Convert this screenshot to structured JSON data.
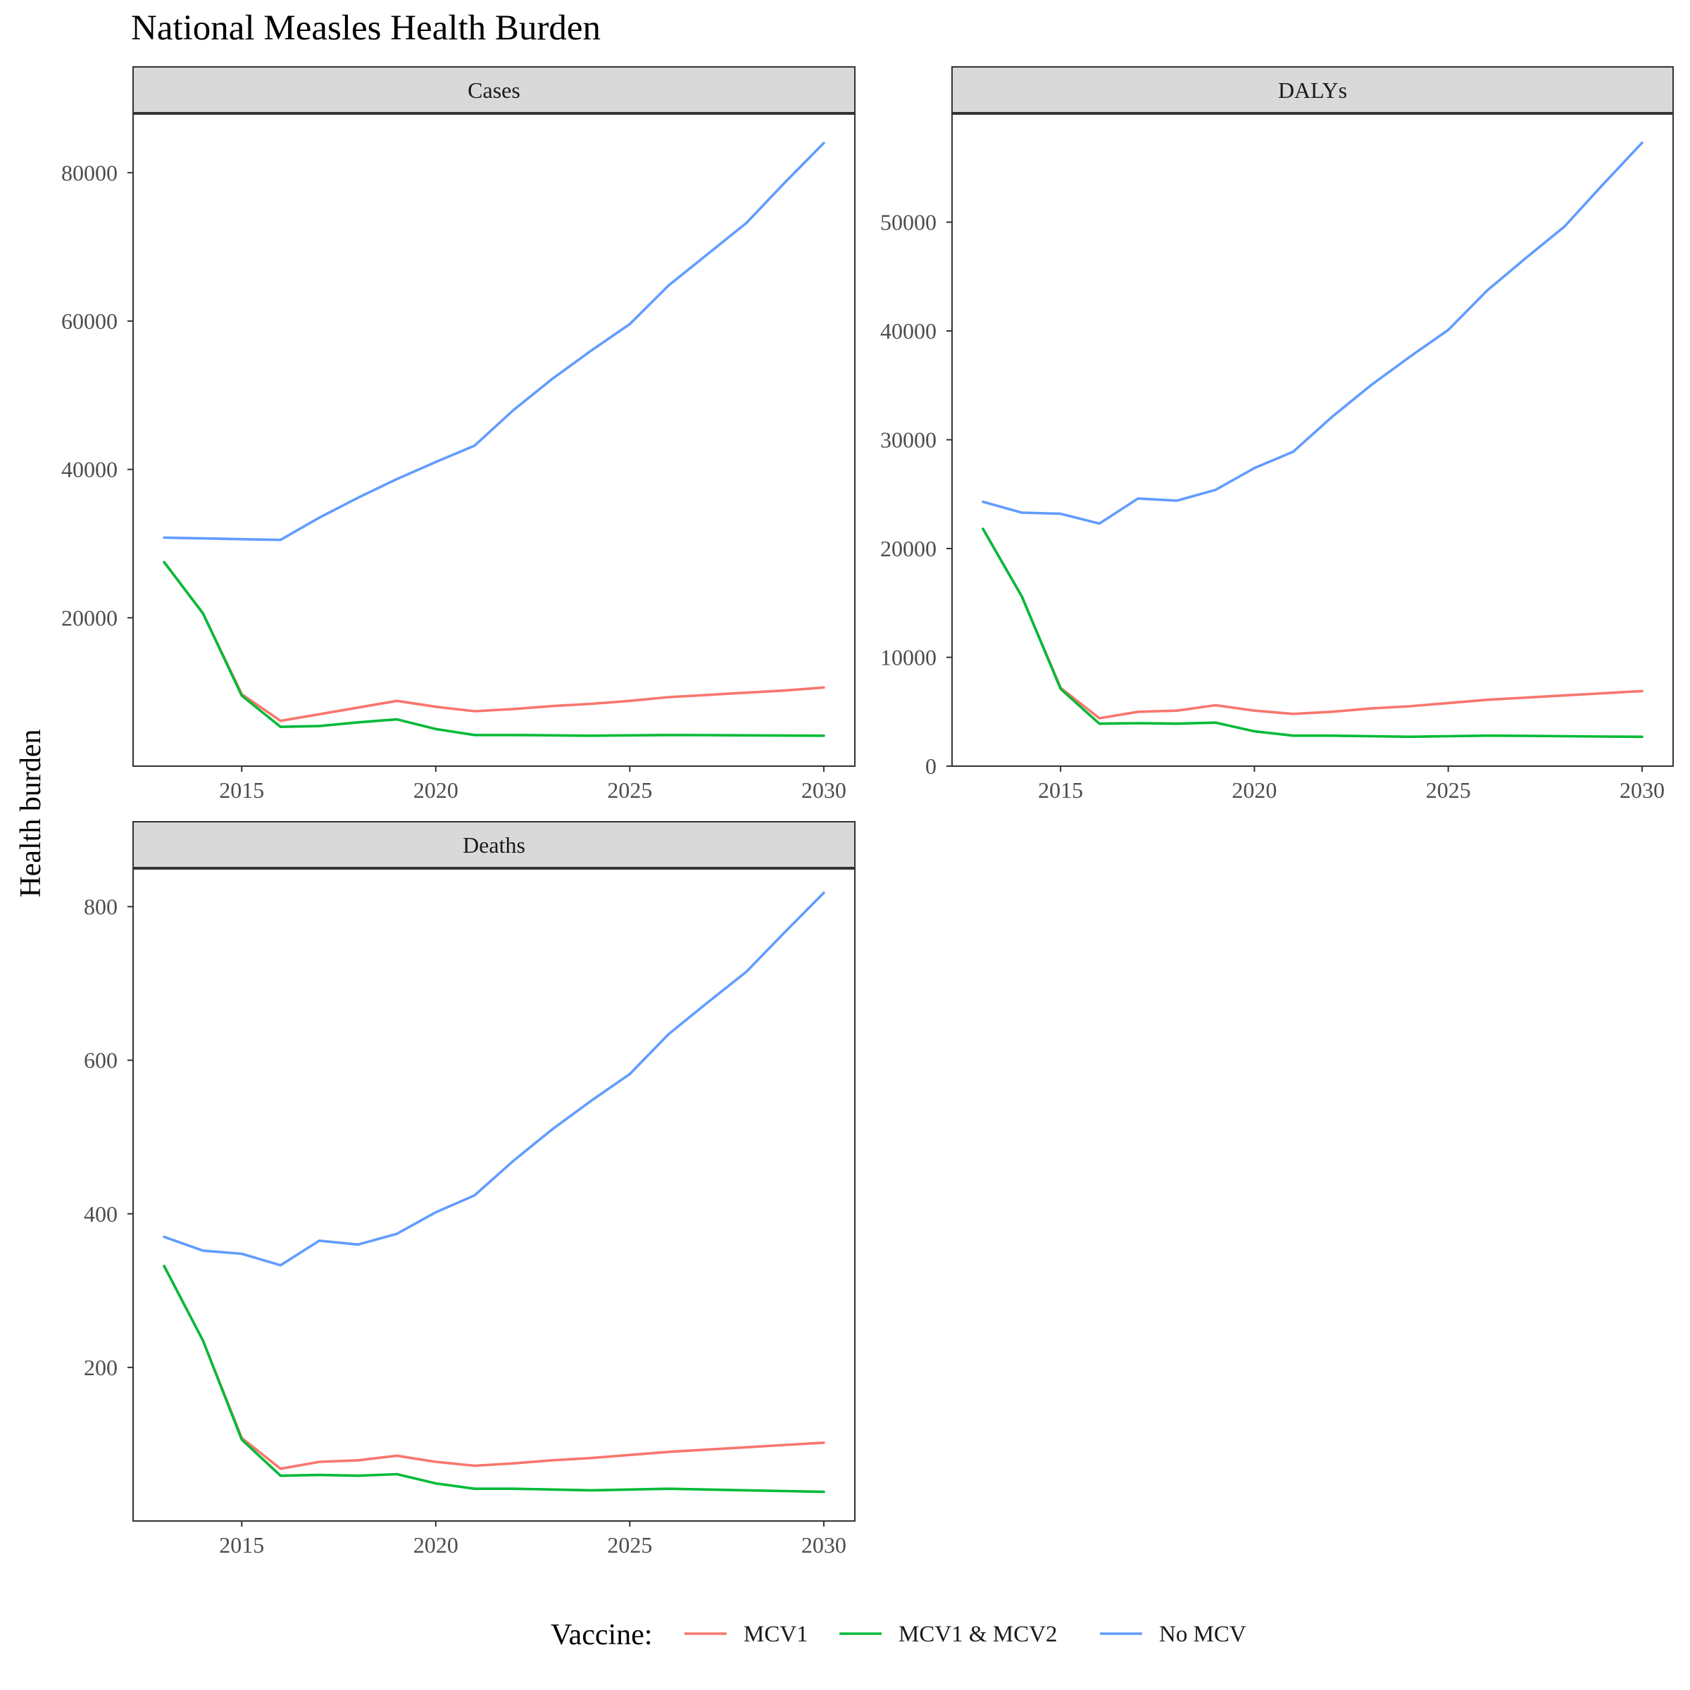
{
  "chart_data": {
    "type": "line",
    "title": "National Measles Health Burden",
    "ylabel": "Health burden",
    "xlabel": "",
    "grid": false,
    "legend": {
      "position": "bottom",
      "title": "Vaccine:",
      "entries": [
        "MCV1",
        "MCV1 & MCV2",
        "No MCV"
      ]
    },
    "colors": {
      "MCV1": "#F8766D",
      "MCV1 & MCV2": "#00BA38",
      "No MCV": "#619CFF"
    },
    "x": [
      2013,
      2014,
      2015,
      2016,
      2017,
      2018,
      2019,
      2020,
      2021,
      2022,
      2023,
      2024,
      2025,
      2026,
      2027,
      2028,
      2029,
      2030
    ],
    "panels": [
      {
        "name": "Cases",
        "xlim": [
          2012.2,
          2030.8
        ],
        "ylim": [
          0,
          88000
        ],
        "xticks": [
          2015,
          2020,
          2025,
          2030
        ],
        "yticks": [
          20000,
          40000,
          60000,
          80000
        ],
        "series": [
          {
            "name": "MCV1",
            "values": [
              27500,
              20600,
              9700,
              6100,
              7000,
              7900,
              8800,
              8000,
              7400,
              7700,
              8100,
              8400,
              8800,
              9300,
              9600,
              9900,
              10200,
              10600
            ]
          },
          {
            "name": "MCV1 & MCV2",
            "values": [
              27500,
              20600,
              9500,
              5300,
              5400,
              5900,
              6300,
              5000,
              4200,
              4200,
              4150,
              4100,
              4150,
              4200,
              4180,
              4150,
              4120,
              4100
            ]
          },
          {
            "name": "No MCV",
            "values": [
              30800,
              30700,
              30600,
              30500,
              33500,
              36200,
              38700,
              41000,
              43200,
              48000,
              52200,
              56000,
              59600,
              64800,
              69000,
              73200,
              78700,
              84000
            ]
          }
        ]
      },
      {
        "name": "DALYs",
        "xlim": [
          2012.2,
          2030.8
        ],
        "ylim": [
          0,
          60000
        ],
        "xticks": [
          2015,
          2020,
          2025,
          2030
        ],
        "yticks": [
          0,
          10000,
          20000,
          30000,
          40000,
          50000
        ],
        "series": [
          {
            "name": "MCV1",
            "values": [
              21800,
              15600,
              7200,
              4400,
              5000,
              5100,
              5600,
              5100,
              4800,
              5000,
              5300,
              5500,
              5800,
              6100,
              6300,
              6500,
              6700,
              6900
            ]
          },
          {
            "name": "MCV1 & MCV2",
            "values": [
              21800,
              15600,
              7100,
              3900,
              3950,
              3900,
              4000,
              3200,
              2800,
              2800,
              2750,
              2700,
              2750,
              2800,
              2780,
              2750,
              2720,
              2700
            ]
          },
          {
            "name": "No MCV",
            "values": [
              24300,
              23300,
              23200,
              22300,
              24600,
              24400,
              25400,
              27400,
              28900,
              32100,
              35000,
              37600,
              40100,
              43700,
              46700,
              49600,
              53500,
              57300
            ]
          }
        ]
      },
      {
        "name": "Deaths",
        "xlim": [
          2012.2,
          2030.8
        ],
        "ylim": [
          0,
          850
        ],
        "xticks": [
          2015,
          2020,
          2025,
          2030
        ],
        "yticks": [
          200,
          400,
          600,
          800
        ],
        "series": [
          {
            "name": "MCV1",
            "values": [
              332,
              235,
              108,
              68,
              77,
              79,
              85,
              77,
              72,
              75,
              79,
              82,
              86,
              90,
              93,
              96,
              99,
              102
            ]
          },
          {
            "name": "MCV1 & MCV2",
            "values": [
              332,
              235,
              106,
              59,
              60,
              59,
              61,
              49,
              42,
              42,
              41,
              40,
              41,
              42,
              41,
              40,
              39,
              38
            ]
          },
          {
            "name": "No MCV",
            "values": [
              370,
              352,
              348,
              333,
              365,
              360,
              374,
              402,
              424,
              469,
              510,
              547,
              582,
              634,
              675,
              715,
              767,
              818
            ]
          }
        ]
      }
    ]
  }
}
